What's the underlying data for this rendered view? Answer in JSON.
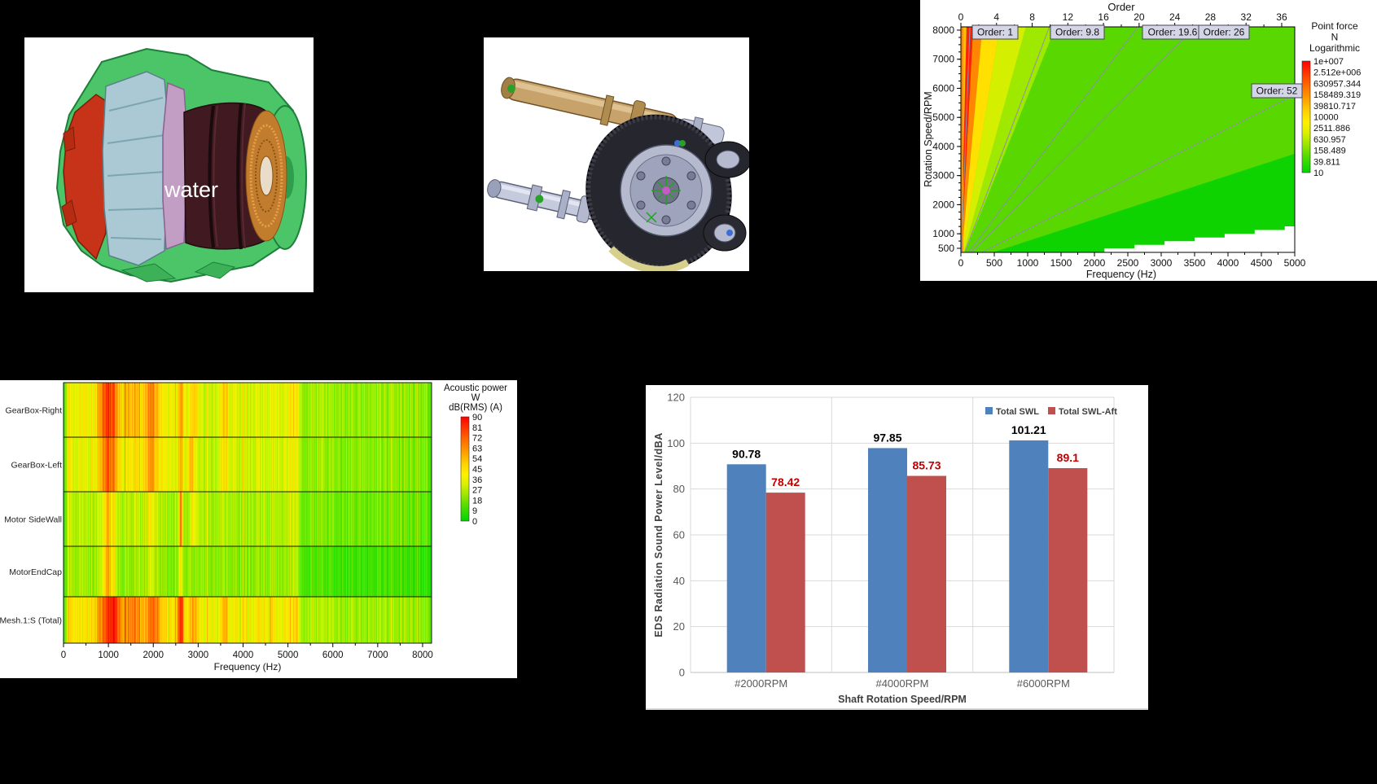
{
  "background": "#000000",
  "labels": {
    "water": "water"
  },
  "chart_data": [
    {
      "id": "order-rpm-frequency-map",
      "type": "heatmap",
      "title": "Order",
      "xlabel": "Frequency (Hz)",
      "ylabel": "Rotation Speed/RPM",
      "xlim": [
        0,
        5000
      ],
      "ylim": [
        500,
        8000
      ],
      "x_ticks": [
        0,
        500,
        1000,
        1500,
        2000,
        2500,
        3000,
        3500,
        4000,
        4500,
        5000
      ],
      "y_ticks": [
        500,
        1000,
        2000,
        3000,
        4000,
        5000,
        6000,
        7000,
        8000
      ],
      "order_ticks": [
        0,
        4,
        8,
        12,
        16,
        20,
        24,
        28,
        32,
        36
      ],
      "order_lines": [
        1,
        9.8,
        19.6,
        26,
        52
      ],
      "order_line_labels": [
        "Order: 1",
        "Order: 9.8",
        "Order: 19.6",
        "Order: 26",
        "Order: 52"
      ],
      "colorbar": {
        "title_lines": [
          "Point force",
          "N",
          "Logarithmic"
        ],
        "tick_labels": [
          "1e+007",
          "2.512e+006",
          "630957.344",
          "158489.319",
          "39810.717",
          "10000",
          "2511.886",
          "630.957",
          "158.489",
          "39.811",
          "10"
        ],
        "top_color": "#ff0000",
        "bottom_color": "#00d400"
      },
      "wedges": [
        [
          0,
          0.62,
          "#ffc000"
        ],
        [
          0.62,
          1.38,
          "#ff2200"
        ],
        [
          1.38,
          2.4,
          "#ff8800"
        ],
        [
          2.4,
          4.3,
          "#ffe000"
        ],
        [
          4.3,
          7.2,
          "#d4f000"
        ],
        [
          7.2,
          10.5,
          "#9fe800"
        ],
        [
          10.5,
          80,
          "#58d800"
        ],
        [
          80,
          2000,
          "#0fd300"
        ]
      ],
      "white_staircase": [
        [
          2150,
          500
        ],
        [
          2600,
          500
        ],
        [
          2600,
          620
        ],
        [
          3050,
          620
        ],
        [
          3050,
          745
        ],
        [
          3500,
          745
        ],
        [
          3500,
          870
        ],
        [
          3950,
          870
        ],
        [
          3950,
          1000
        ],
        [
          4400,
          1000
        ],
        [
          4400,
          1130
        ],
        [
          4850,
          1130
        ],
        [
          4850,
          1255
        ],
        [
          5300,
          1255
        ]
      ]
    },
    {
      "id": "acoustic-power-map",
      "type": "heatmap",
      "rows": [
        "GearBox-Right",
        "GearBox-Left",
        "Motor SideWall",
        "MotorEndCap",
        "Mesh.1:S (Total)"
      ],
      "xlabel": "Frequency (Hz)",
      "xlim": [
        0,
        8200
      ],
      "x_ticks": [
        0,
        1000,
        2000,
        3000,
        4000,
        5000,
        6000,
        7000,
        8000
      ],
      "colorbar": {
        "title_lines": [
          "Acoustic power",
          "W",
          "dB(RMS) (A)"
        ],
        "tick_labels": [
          "90",
          "81",
          "72",
          "63",
          "54",
          "45",
          "36",
          "27",
          "18",
          "9",
          "0"
        ]
      },
      "row_profiles": [
        {
          "base": [
            [
              0,
              16
            ],
            [
              120,
              44
            ],
            [
              800,
              48
            ],
            [
              1500,
              52
            ],
            [
              2500,
              46
            ],
            [
              3100,
              38
            ],
            [
              3600,
              42
            ],
            [
              5150,
              42
            ],
            [
              5350,
              32
            ],
            [
              8100,
              28
            ],
            [
              8200,
              18
            ]
          ],
          "peaks": [
            [
              980,
              130,
              80
            ],
            [
              1450,
              200,
              58
            ],
            [
              1950,
              90,
              66
            ],
            [
              2600,
              45,
              62
            ],
            [
              2900,
              60,
              56
            ],
            [
              3600,
              50,
              56
            ],
            [
              5200,
              25,
              55
            ]
          ]
        },
        {
          "base": [
            [
              0,
              16
            ],
            [
              120,
              42
            ],
            [
              800,
              46
            ],
            [
              1500,
              48
            ],
            [
              2500,
              44
            ],
            [
              3100,
              36
            ],
            [
              3600,
              40
            ],
            [
              5150,
              40
            ],
            [
              5350,
              30
            ],
            [
              8100,
              26
            ],
            [
              8200,
              17
            ]
          ],
          "peaks": [
            [
              980,
              120,
              74
            ],
            [
              1950,
              80,
              64
            ],
            [
              2600,
              40,
              60
            ],
            [
              2850,
              60,
              58
            ],
            [
              3600,
              40,
              52
            ],
            [
              5200,
              25,
              52
            ]
          ]
        },
        {
          "base": [
            [
              0,
              14
            ],
            [
              120,
              36
            ],
            [
              1500,
              36
            ],
            [
              2500,
              32
            ],
            [
              5150,
              34
            ],
            [
              5350,
              26
            ],
            [
              8100,
              22
            ],
            [
              8200,
              15
            ]
          ],
          "peaks": [
            [
              980,
              90,
              58
            ],
            [
              1950,
              60,
              48
            ],
            [
              2600,
              30,
              68
            ],
            [
              2900,
              50,
              48
            ],
            [
              5200,
              25,
              46
            ]
          ]
        },
        {
          "base": [
            [
              0,
              13
            ],
            [
              120,
              32
            ],
            [
              1500,
              30
            ],
            [
              2500,
              28
            ],
            [
              5150,
              30
            ],
            [
              5350,
              18
            ],
            [
              8100,
              14
            ],
            [
              8200,
              10
            ]
          ],
          "peaks": [
            [
              980,
              90,
              60
            ],
            [
              1950,
              50,
              42
            ],
            [
              2600,
              30,
              50
            ],
            [
              5200,
              25,
              42
            ]
          ]
        },
        {
          "base": [
            [
              0,
              18
            ],
            [
              120,
              48
            ],
            [
              800,
              52
            ],
            [
              1500,
              54
            ],
            [
              2500,
              50
            ],
            [
              3100,
              44
            ],
            [
              3600,
              46
            ],
            [
              5150,
              46
            ],
            [
              5350,
              34
            ],
            [
              8100,
              30
            ],
            [
              8200,
              20
            ]
          ],
          "peaks": [
            [
              1050,
              170,
              82
            ],
            [
              1450,
              250,
              66
            ],
            [
              1980,
              100,
              70
            ],
            [
              2600,
              45,
              84
            ],
            [
              2900,
              60,
              62
            ],
            [
              3600,
              50,
              58
            ],
            [
              4600,
              40,
              54
            ],
            [
              5200,
              25,
              60
            ]
          ]
        }
      ]
    },
    {
      "id": "eds-radiation-swl",
      "type": "bar",
      "categories": [
        "#2000RPM",
        "#4000RPM",
        "#6000RPM"
      ],
      "series": [
        {
          "name": "Total SWL",
          "color": "#4F81BD",
          "values": [
            90.78,
            97.85,
            101.21
          ],
          "labels": [
            "90.78",
            "97.85",
            "101.21"
          ],
          "label_color": "#000000"
        },
        {
          "name": "Total SWL-Aft",
          "color": "#C0504D",
          "values": [
            78.42,
            85.73,
            89.1
          ],
          "labels": [
            "78.42",
            "85.73",
            "89.1"
          ],
          "label_color": "#C00000"
        }
      ],
      "xlabel": "Shaft Rotation Speed/RPM",
      "ylabel": "EDS Radiation Sound Power Level/dBA",
      "ylim": [
        0,
        120
      ],
      "y_ticks": [
        0,
        20,
        40,
        60,
        80,
        100,
        120
      ],
      "grid": true,
      "legend_position": "top-right"
    }
  ]
}
